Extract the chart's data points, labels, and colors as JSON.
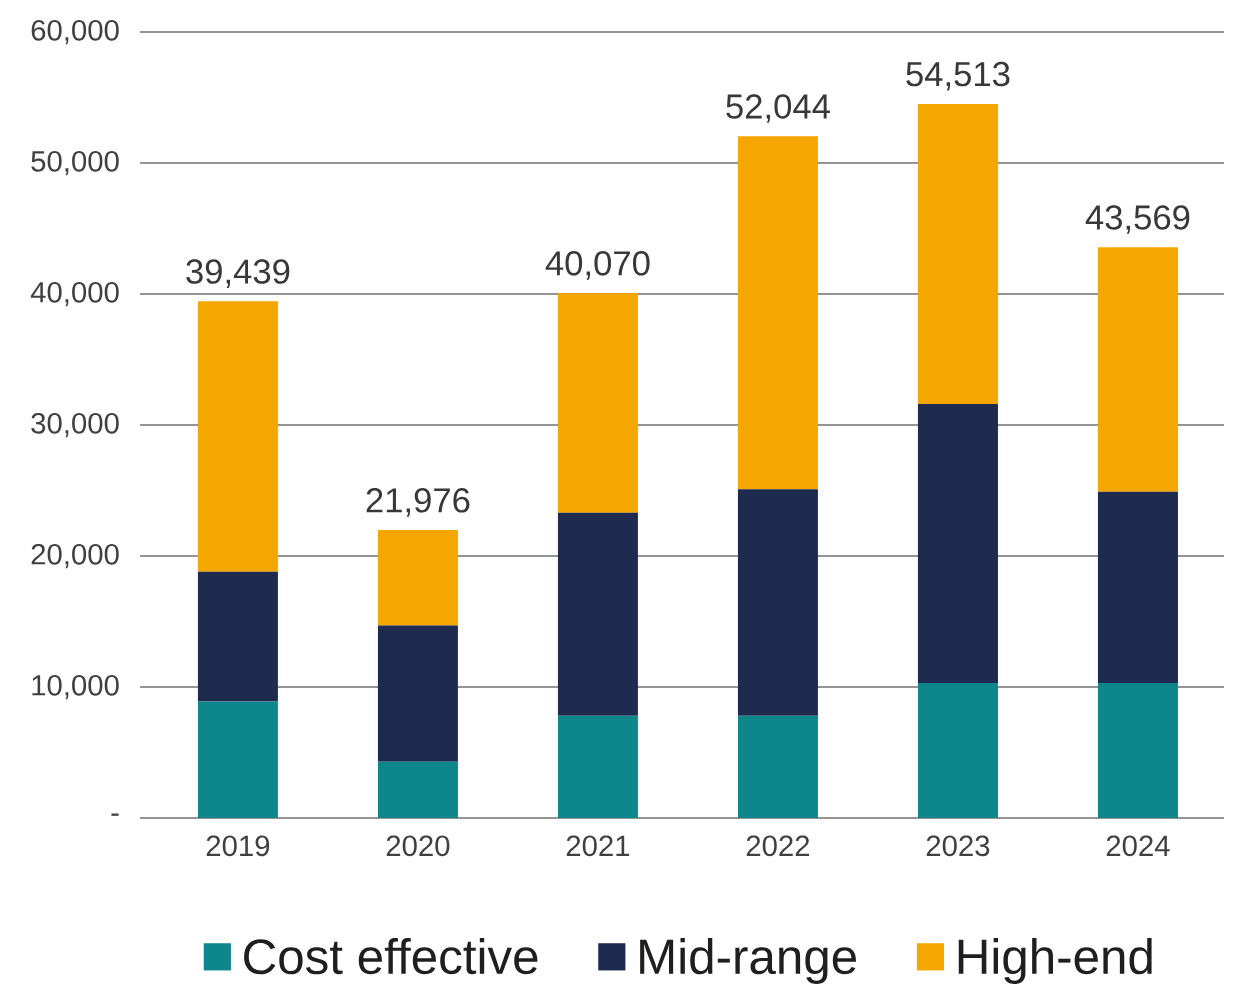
{
  "chart_data": {
    "type": "bar",
    "stacked": true,
    "categories": [
      "2019",
      "2020",
      "2021",
      "2022",
      "2023",
      "2024"
    ],
    "series": [
      {
        "name": "Cost effective",
        "color": "#0d868c",
        "values": [
          8900,
          4300,
          7800,
          7800,
          10300,
          10300
        ]
      },
      {
        "name": "Mid-range",
        "color": "#1e2b4e",
        "values": [
          9900,
          10400,
          15500,
          17300,
          21300,
          14600
        ]
      },
      {
        "name": "High-end",
        "color": "#f5a600",
        "values": [
          20639,
          7276,
          16770,
          26944,
          22913,
          18669
        ]
      }
    ],
    "totals": [
      "39,439",
      "21,976",
      "40,070",
      "52,044",
      "54,513",
      "43,569"
    ],
    "ylim": [
      0,
      60000
    ],
    "yticks": [
      {
        "value": 0,
        "label": "-"
      },
      {
        "value": 10000,
        "label": "10,000"
      },
      {
        "value": 20000,
        "label": "20,000"
      },
      {
        "value": 30000,
        "label": "30,000"
      },
      {
        "value": 40000,
        "label": "40,000"
      },
      {
        "value": 50000,
        "label": "50,000"
      },
      {
        "value": 60000,
        "label": "60,000"
      }
    ],
    "grid": "y",
    "legend": "bottom"
  }
}
